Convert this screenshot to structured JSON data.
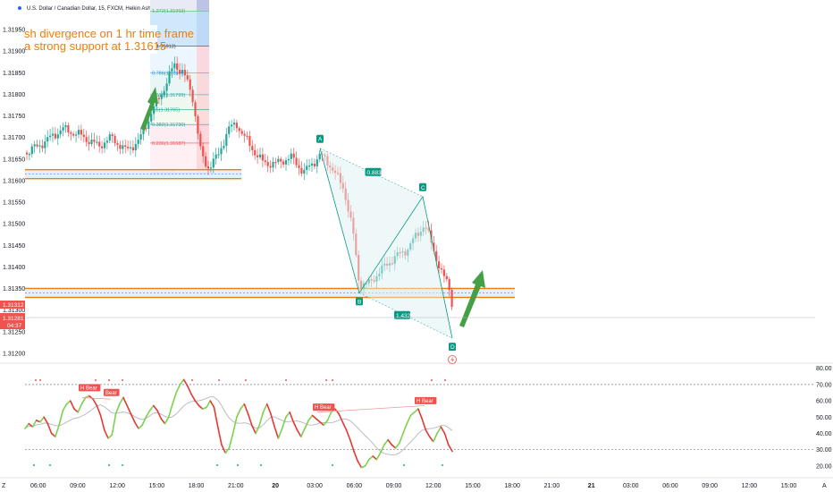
{
  "chart_data": {
    "type": "candlestick",
    "title": "U.S. Dollar / Canadian Dollar, 15, FXCM, Heikin Ashi",
    "price_axis": {
      "ticks": [
        "1.31950",
        "1.31900",
        "1.31850",
        "1.31800",
        "1.31750",
        "1.31700",
        "1.31650",
        "1.31600",
        "1.31550",
        "1.31500",
        "1.31450",
        "1.31400",
        "1.31350",
        "1.31300",
        "1.31250",
        "1.31200"
      ],
      "range": [
        1.3117,
        1.3203
      ],
      "current_price_label": "1.31312",
      "current_close_label": "1.31281",
      "countdown_label": "04:37"
    },
    "time_axis": {
      "ticks": [
        "06:00",
        "09:00",
        "12:00",
        "15:00",
        "18:00",
        "21:00",
        "20",
        "03:00",
        "06:00",
        "09:00",
        "12:00",
        "15:00",
        "18:00",
        "21:00",
        "21",
        "03:00",
        "06:00",
        "09:00",
        "12:00",
        "15:00"
      ]
    },
    "annotations": {
      "note_line1": "sh divergence on 1 hr time frame",
      "note_line2": "a strong support at 1.31615",
      "support_upper": 1.31615,
      "support_lower": 1.3134,
      "fib_levels": [
        {
          "label": "1.272(1.31993)",
          "price": 1.31993
        },
        {
          "label": "1(1.31912)",
          "price": 1.31912
        },
        {
          "label": "0.786(1.31849)",
          "price": 1.31849
        },
        {
          "label": "0.618(1.31799)",
          "price": 1.31799
        },
        {
          "label": "0.5(1.31765)",
          "price": 1.31765
        },
        {
          "label": "0.382(1.31730)",
          "price": 1.3173
        },
        {
          "label": "0.236(1.31687)",
          "price": 1.31687
        },
        {
          "label": "0(1.31617)",
          "price": 1.31617
        }
      ],
      "pattern_points": [
        {
          "label": "A",
          "price": 1.31675
        },
        {
          "label": "B",
          "price": 1.3134
        },
        {
          "label": "C",
          "price": 1.31563
        },
        {
          "label": "D",
          "price": 1.31235
        }
      ],
      "ratios": [
        "0.883",
        "1.432"
      ]
    },
    "oscillator": {
      "ticks": [
        "80.00",
        "70.00",
        "60.00",
        "50.00",
        "40.00",
        "30.00",
        "20.00"
      ],
      "range": [
        15,
        82
      ],
      "overbought": 70,
      "oversold": 30,
      "bear_labels": [
        "H Bear",
        "Bear",
        "H Bear",
        "H Bear"
      ],
      "values": [
        43,
        46,
        44,
        48,
        47,
        50,
        46,
        40,
        38,
        45,
        54,
        58,
        60,
        55,
        53,
        58,
        62,
        63,
        61,
        57,
        51,
        42,
        37,
        39,
        52,
        58,
        62,
        57,
        52,
        47,
        43,
        45,
        50,
        54,
        57,
        54,
        49,
        46,
        50,
        58,
        65,
        70,
        73,
        69,
        64,
        60,
        57,
        55,
        56,
        60,
        56,
        44,
        33,
        28,
        31,
        40,
        50,
        55,
        58,
        52,
        45,
        40,
        45,
        53,
        58,
        52,
        44,
        37,
        43,
        50,
        53,
        47,
        42,
        38,
        43,
        48,
        51,
        49,
        47,
        45,
        48,
        53,
        55,
        52,
        47,
        42,
        36,
        29,
        23,
        19,
        20,
        24,
        26,
        24,
        28,
        33,
        36,
        33,
        31,
        34,
        40,
        46,
        51,
        53,
        55,
        49,
        42,
        38,
        35,
        40,
        44,
        40,
        33,
        29
      ]
    },
    "colors": {
      "bull": "#26a69a",
      "bear": "#ef5350",
      "support": "#f57c00",
      "arrow": "#43a047",
      "oscillator_up": "#7cd14f",
      "oscillator_down": "#e53935",
      "pattern": "#089981"
    },
    "corner_labels": {
      "left": "Z",
      "right": "A"
    }
  }
}
